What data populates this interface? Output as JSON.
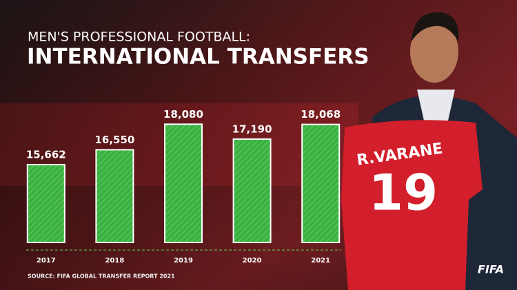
{
  "chart_data": {
    "type": "bar",
    "title": "MEN'S PROFESSIONAL FOOTBALL:",
    "subtitle": "INTERNATIONAL TRANSFERS",
    "categories": [
      "2017",
      "2018",
      "2019",
      "2020",
      "2021"
    ],
    "values": [
      15662,
      16550,
      18080,
      17190,
      18068
    ],
    "value_labels": [
      "15,662",
      "16,550",
      "18,080",
      "17,190",
      "18,068"
    ],
    "color": "#3cb043",
    "ylim": [
      11000,
      19000
    ],
    "source": "SOURCE: FIFA GLOBAL TRANSFER REPORT 2021"
  },
  "logo": "FIFA",
  "jersey": {
    "name": "R.VARANE",
    "number": "19"
  }
}
